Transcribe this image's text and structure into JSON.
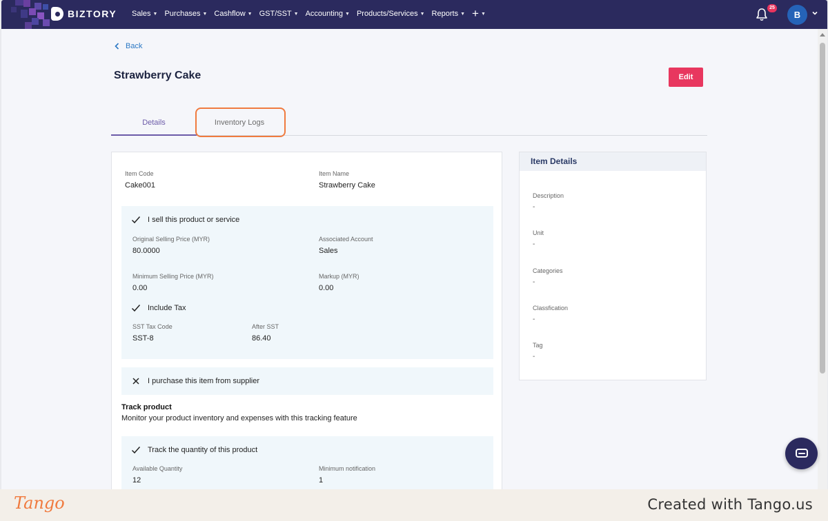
{
  "nav": {
    "brand": "BIZTORY",
    "menu": [
      "Sales",
      "Purchases",
      "Cashflow",
      "GST/SST",
      "Accounting",
      "Products/Services",
      "Reports"
    ],
    "notification_count": "25",
    "avatar_initial": "B"
  },
  "page": {
    "back_label": "Back",
    "title": "Strawberry Cake",
    "edit_label": "Edit",
    "tabs": [
      "Details",
      "Inventory Logs"
    ]
  },
  "details": {
    "item_code_label": "Item Code",
    "item_code": "Cake001",
    "item_name_label": "Item Name",
    "item_name": "Strawberry Cake",
    "sell_label": "I sell this product or service",
    "orig_price_label": "Original Selling Price (MYR)",
    "orig_price": "80.0000",
    "assoc_account_label": "Associated Account",
    "assoc_account": "Sales",
    "min_price_label": "Minimum Selling Price (MYR)",
    "min_price": "0.00",
    "markup_label": "Markup (MYR)",
    "markup": "0.00",
    "include_tax_label": "Include Tax",
    "sst_code_label": "SST Tax Code",
    "sst_code": "SST-8",
    "after_sst_label": "After SST",
    "after_sst": "86.40",
    "purchase_label": "I purchase this item from supplier",
    "track_title": "Track product",
    "track_desc": "Monitor your product inventory and expenses with this tracking feature",
    "track_qty_label": "Track the quantity of this product",
    "avail_qty_label": "Available Quantity",
    "avail_qty": "12",
    "min_notif_label": "Minimum notification",
    "min_notif": "1"
  },
  "side": {
    "title": "Item Details",
    "fields": [
      {
        "label": "Description",
        "value": "-"
      },
      {
        "label": "Unit",
        "value": "-"
      },
      {
        "label": "Categories",
        "value": "-"
      },
      {
        "label": "Classfication",
        "value": "-"
      },
      {
        "label": "Tag",
        "value": "-"
      }
    ]
  },
  "footer": {
    "brand": "Tango",
    "created": "Created with Tango.us"
  },
  "colors": {
    "nav_bg": "#2b2a5e",
    "accent": "#e8375f",
    "highlight": "#f07a3e",
    "link": "#2b78c4"
  }
}
